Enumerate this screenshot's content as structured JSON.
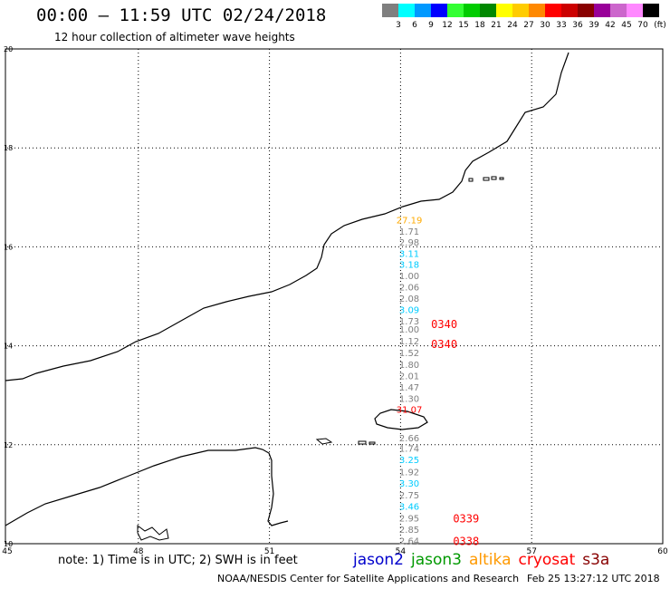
{
  "header": {
    "title": "00:00 – 11:59 UTC 02/24/2018",
    "subtitle": "12 hour collection of altimeter wave heights"
  },
  "legend": {
    "unit": "(ft)",
    "bins": [
      {
        "label": "3",
        "color": "#7f7f7f"
      },
      {
        "label": "6",
        "color": "#00ffff"
      },
      {
        "label": "9",
        "color": "#0099ff"
      },
      {
        "label": "12",
        "color": "#0000ff"
      },
      {
        "label": "15",
        "color": "#33ff33"
      },
      {
        "label": "18",
        "color": "#00cc00"
      },
      {
        "label": "21",
        "color": "#008800"
      },
      {
        "label": "24",
        "color": "#ffff00"
      },
      {
        "label": "27",
        "color": "#ffcc00"
      },
      {
        "label": "30",
        "color": "#ff8800"
      },
      {
        "label": "33",
        "color": "#ff0000"
      },
      {
        "label": "36",
        "color": "#cc0000"
      },
      {
        "label": "39",
        "color": "#880000"
      },
      {
        "label": "42",
        "color": "#990099"
      },
      {
        "label": "45",
        "color": "#cc66cc"
      },
      {
        "label": "70",
        "color": "#ff88ff"
      },
      {
        "label": "",
        "color": "#000000"
      }
    ]
  },
  "axes": {
    "lon_ticks": [
      "45",
      "48",
      "51",
      "54",
      "57",
      "60"
    ],
    "lat_ticks": [
      "10",
      "12",
      "14",
      "16",
      "18",
      "20"
    ],
    "lon_range": [
      45,
      60
    ],
    "lat_range": [
      10,
      20
    ]
  },
  "observations": [
    {
      "text": "27.19",
      "lat": 16.55,
      "color": "#ffaa00"
    },
    {
      "text": "1.71",
      "lat": 16.32,
      "color": "#7f7f7f"
    },
    {
      "text": "2.98",
      "lat": 16.1,
      "color": "#7f7f7f"
    },
    {
      "text": "3.11",
      "lat": 15.87,
      "color": "#00ccff"
    },
    {
      "text": "3.18",
      "lat": 15.65,
      "color": "#00ccff"
    },
    {
      "text": "1.00",
      "lat": 15.42,
      "color": "#7f7f7f"
    },
    {
      "text": "2.06",
      "lat": 15.19,
      "color": "#7f7f7f"
    },
    {
      "text": "2.08",
      "lat": 14.96,
      "color": "#7f7f7f"
    },
    {
      "text": "3.09",
      "lat": 14.73,
      "color": "#00ccff"
    },
    {
      "text": "1.73",
      "lat": 14.51,
      "color": "#7f7f7f"
    },
    {
      "text": "1.00",
      "lat": 14.34,
      "color": "#7f7f7f"
    },
    {
      "text": "1.12",
      "lat": 14.1,
      "color": "#7f7f7f"
    },
    {
      "text": "1.52",
      "lat": 13.86,
      "color": "#7f7f7f"
    },
    {
      "text": "1.80",
      "lat": 13.63,
      "color": "#7f7f7f"
    },
    {
      "text": "2.01",
      "lat": 13.4,
      "color": "#7f7f7f"
    },
    {
      "text": "1.47",
      "lat": 13.17,
      "color": "#7f7f7f"
    },
    {
      "text": "1.30",
      "lat": 12.94,
      "color": "#7f7f7f"
    },
    {
      "text": "31.07",
      "lat": 12.72,
      "color": "#ff0000"
    },
    {
      "text": "2.66",
      "lat": 12.14,
      "color": "#7f7f7f"
    },
    {
      "text": "1.74",
      "lat": 11.93,
      "color": "#7f7f7f"
    },
    {
      "text": "3.25",
      "lat": 11.7,
      "color": "#00ccff"
    },
    {
      "text": "1.92",
      "lat": 11.46,
      "color": "#7f7f7f"
    },
    {
      "text": "3.30",
      "lat": 11.23,
      "color": "#00ccff"
    },
    {
      "text": "2.75",
      "lat": 10.99,
      "color": "#7f7f7f"
    },
    {
      "text": "3.46",
      "lat": 10.76,
      "color": "#00ccff"
    },
    {
      "text": "2.95",
      "lat": 10.52,
      "color": "#7f7f7f"
    },
    {
      "text": "2.85",
      "lat": 10.29,
      "color": "#7f7f7f"
    },
    {
      "text": "2.64",
      "lat": 10.06,
      "color": "#7f7f7f"
    }
  ],
  "time_tags": [
    {
      "text": "0340",
      "lon": 54.7,
      "lat": 14.45
    },
    {
      "text": "0340",
      "lon": 54.7,
      "lat": 14.05
    },
    {
      "text": "0339",
      "lon": 55.2,
      "lat": 10.52
    },
    {
      "text": "0338",
      "lon": 55.2,
      "lat": 10.06
    }
  ],
  "footer": {
    "note": "note: 1) Time is in UTC; 2) SWH is in feet",
    "satellites": [
      {
        "name": "jason2",
        "color": "#0000cc"
      },
      {
        "name": "jason3",
        "color": "#009900"
      },
      {
        "name": "altika",
        "color": "#ff9900"
      },
      {
        "name": "cryosat",
        "color": "#ff0000"
      },
      {
        "name": "s3a",
        "color": "#880000"
      }
    ],
    "credit": "NOAA/NESDIS Center for Satellite Applications and Research",
    "timestamp": "Feb 25 13:27:12 UTC 2018"
  }
}
